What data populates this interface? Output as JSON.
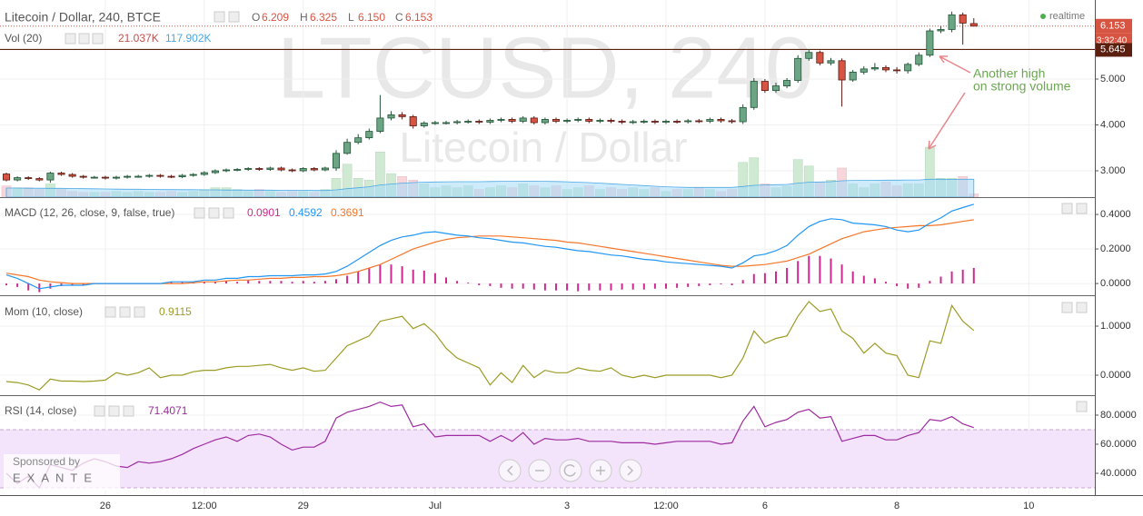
{
  "chart_data": [
    {
      "type": "candlestick",
      "title": "Litecoin / Dollar, 240, BTCE",
      "legend_ohlc": [
        {
          "name": "O",
          "value": 6.209,
          "label": "6.209"
        },
        {
          "name": "H",
          "value": 6.325,
          "label": "6.325"
        },
        {
          "name": "L",
          "value": 6.15,
          "label": "6.150"
        },
        {
          "name": "C",
          "value": 6.153,
          "label": "6.153"
        }
      ],
      "watermark": "LTCUSD, 240",
      "watermark_subtitle": "Litecoin / Dollar",
      "status": "realtime",
      "countdown": "3:32:40",
      "level": 5.645,
      "annotation": [
        "Another high",
        "on strong volume"
      ],
      "annotation_color": "#6aa84f",
      "colors": {
        "up": "#6ba583",
        "up_border": "#225437",
        "down": "#d75442",
        "down_border": "#5b1a13",
        "volume_up": "#cfe9d3",
        "volume_down": "#f6d6db",
        "last_price": "#d75442",
        "level": "#5a1f0f"
      },
      "xlim": [
        -0.58,
        99.01
      ],
      "xticks": [
        {
          "value": 9,
          "label": "26"
        },
        {
          "value": 18,
          "label": "12:00"
        },
        {
          "value": 27,
          "label": "29"
        },
        {
          "value": 39,
          "label": "Jul"
        },
        {
          "value": 51,
          "label": "3"
        },
        {
          "value": 60,
          "label": "12:00"
        },
        {
          "value": 69,
          "label": "6"
        },
        {
          "value": 81,
          "label": "8"
        },
        {
          "value": 93,
          "label": "10"
        }
      ],
      "ylim": [
        2.426,
        6.723
      ],
      "yticks": [
        {
          "value": 3,
          "label": "3.000"
        },
        {
          "value": 4,
          "label": "4.000"
        },
        {
          "value": 5,
          "label": "5.000"
        }
      ],
      "grid": true,
      "open": [
        2.93,
        2.8,
        2.85,
        2.83,
        2.8,
        2.95,
        2.92,
        2.88,
        2.86,
        2.86,
        2.84,
        2.86,
        2.88,
        2.88,
        2.9,
        2.88,
        2.87,
        2.9,
        2.92,
        2.96,
        3.0,
        3.02,
        3.03,
        3.05,
        3.03,
        3.06,
        3.02,
        3.0,
        3.05,
        3.02,
        3.06,
        3.38,
        3.62,
        3.72,
        3.86,
        4.15,
        4.22,
        4.18,
        3.98,
        4.04,
        4.05,
        4.05,
        4.07,
        4.08,
        4.06,
        4.1,
        4.12,
        4.08,
        4.15,
        4.05,
        4.12,
        4.08,
        4.1,
        4.12,
        4.08,
        4.1,
        4.08,
        4.06,
        4.07,
        4.08,
        4.06,
        4.08,
        4.07,
        4.09,
        4.08,
        4.12,
        4.09,
        4.07,
        4.38,
        4.95,
        4.75,
        4.85,
        4.97,
        5.45,
        5.58,
        5.35,
        5.4,
        4.98,
        5.15,
        5.22,
        5.25,
        5.2,
        5.18,
        5.32,
        5.52,
        6.05,
        6.08,
        6.4,
        6.209
      ],
      "high": [
        2.96,
        2.88,
        2.88,
        2.86,
        2.98,
        2.98,
        2.95,
        2.91,
        2.89,
        2.89,
        2.89,
        2.91,
        2.91,
        2.93,
        2.93,
        2.91,
        2.93,
        2.95,
        2.99,
        3.03,
        3.05,
        3.06,
        3.08,
        3.08,
        3.09,
        3.09,
        3.05,
        3.08,
        3.08,
        3.09,
        3.45,
        3.7,
        3.8,
        3.92,
        4.65,
        4.3,
        4.28,
        4.22,
        4.08,
        4.09,
        4.09,
        4.11,
        4.12,
        4.12,
        4.14,
        4.16,
        4.16,
        4.19,
        4.19,
        4.16,
        4.16,
        4.14,
        4.16,
        4.16,
        4.14,
        4.14,
        4.12,
        4.11,
        4.12,
        4.12,
        4.12,
        4.12,
        4.13,
        4.13,
        4.16,
        4.16,
        4.13,
        4.45,
        5.02,
        5.0,
        4.92,
        5.02,
        5.52,
        5.65,
        5.62,
        5.46,
        5.45,
        5.2,
        5.28,
        5.35,
        5.3,
        5.26,
        5.36,
        5.58,
        6.1,
        6.15,
        6.47,
        6.45,
        6.325
      ],
      "low": [
        2.77,
        2.77,
        2.8,
        2.77,
        2.74,
        2.89,
        2.85,
        2.83,
        2.83,
        2.81,
        2.81,
        2.83,
        2.85,
        2.85,
        2.85,
        2.84,
        2.84,
        2.87,
        2.89,
        2.93,
        2.97,
        2.99,
        3.0,
        3.0,
        3.0,
        2.99,
        2.97,
        2.97,
        2.99,
        2.99,
        3.0,
        3.35,
        3.58,
        3.68,
        3.82,
        4.1,
        4.12,
        3.92,
        3.94,
        4.0,
        4.01,
        4.01,
        4.03,
        4.02,
        4.02,
        4.06,
        4.04,
        4.04,
        4.01,
        4.01,
        4.04,
        4.04,
        4.06,
        4.04,
        4.04,
        4.04,
        4.02,
        4.02,
        4.03,
        4.02,
        4.02,
        4.03,
        4.03,
        4.04,
        4.04,
        4.05,
        4.03,
        4.02,
        4.33,
        4.7,
        4.7,
        4.8,
        4.92,
        5.4,
        5.3,
        5.3,
        4.4,
        4.94,
        5.1,
        5.18,
        5.15,
        5.12,
        5.12,
        5.28,
        5.48,
        6.0,
        6.02,
        5.75,
        6.15
      ],
      "close": [
        2.8,
        2.85,
        2.83,
        2.8,
        2.95,
        2.92,
        2.88,
        2.86,
        2.86,
        2.84,
        2.86,
        2.88,
        2.88,
        2.9,
        2.88,
        2.87,
        2.9,
        2.92,
        2.96,
        3.0,
        3.02,
        3.03,
        3.05,
        3.03,
        3.06,
        3.02,
        3.0,
        3.05,
        3.02,
        3.06,
        3.38,
        3.62,
        3.72,
        3.86,
        4.15,
        4.22,
        4.18,
        3.98,
        4.04,
        4.05,
        4.05,
        4.07,
        4.08,
        4.06,
        4.1,
        4.12,
        4.08,
        4.15,
        4.05,
        4.12,
        4.08,
        4.1,
        4.12,
        4.08,
        4.1,
        4.08,
        4.06,
        4.07,
        4.08,
        4.06,
        4.08,
        4.07,
        4.09,
        4.08,
        4.12,
        4.09,
        4.07,
        4.38,
        4.95,
        4.75,
        4.85,
        4.97,
        5.45,
        5.58,
        5.35,
        5.4,
        4.98,
        5.15,
        5.22,
        5.25,
        5.2,
        5.18,
        5.32,
        5.52,
        6.05,
        6.08,
        6.4,
        6.22,
        6.153
      ],
      "volume": {
        "name": "Vol (20)",
        "ylim": [
          0,
          1300
        ],
        "values": [
          74,
          62,
          62,
          50,
          87,
          50,
          37,
          31,
          31,
          31,
          37,
          31,
          37,
          31,
          31,
          37,
          31,
          37,
          50,
          62,
          62,
          50,
          37,
          50,
          37,
          31,
          37,
          37,
          31,
          50,
          124,
          217,
          124,
          112,
          298,
          155,
          136,
          112,
          87,
          62,
          74,
          62,
          74,
          50,
          62,
          74,
          62,
          87,
          74,
          62,
          74,
          50,
          62,
          74,
          50,
          62,
          50,
          62,
          50,
          62,
          37,
          50,
          50,
          62,
          50,
          37,
          50,
          229,
          260,
          87,
          62,
          74,
          248,
          205,
          99,
          112,
          192,
          87,
          62,
          87,
          99,
          74,
          87,
          87,
          329,
          124,
          124,
          136,
          21.037
        ],
        "last_label": "21.037K",
        "last_color": "#c0504d",
        "ma": [
          60,
          60,
          59,
          59,
          58,
          58,
          57,
          56,
          55,
          54,
          53,
          52,
          52,
          51,
          50,
          50,
          49,
          49,
          48,
          48,
          47,
          47,
          46,
          46,
          46,
          45,
          45,
          45,
          44,
          44,
          48,
          56,
          62,
          68,
          80,
          86,
          92,
          96,
          99,
          100,
          101,
          102,
          102,
          102,
          103,
          104,
          104,
          105,
          105,
          104,
          103,
          101,
          98,
          96,
          92,
          88,
          84,
          80,
          76,
          72,
          68,
          66,
          64,
          64,
          64,
          64,
          64,
          70,
          78,
          80,
          82,
          84,
          92,
          98,
          100,
          102,
          108,
          110,
          110,
          111,
          112,
          112,
          113,
          113,
          118,
          118,
          117,
          118,
          117.902
        ],
        "ma_last_label": "117.902K",
        "ma_color": "#4aa8e6",
        "ma_fill": "#a6dbf8"
      }
    },
    {
      "type": "macd",
      "name": "MACD (12, 26, close, 9, false, true)",
      "ylim": [
        -0.068,
        0.495
      ],
      "yticks": [
        {
          "value": 0,
          "label": "0.0000"
        },
        {
          "value": 0.2,
          "label": "0.2000"
        },
        {
          "value": 0.4,
          "label": "0.4000"
        }
      ],
      "series": [
        {
          "color": "#cc2a8e",
          "values": [
            -0.01,
            -0.02,
            -0.04,
            -0.05,
            -0.03,
            -0.015,
            -0.01,
            -0.01,
            0.0,
            0.0,
            0.0,
            0.0,
            0.0,
            0.0,
            0.0,
            0.01,
            0.01,
            0.005,
            0.01,
            0.01,
            0.015,
            0.01,
            0.02,
            0.015,
            0.015,
            0.015,
            0.01,
            0.015,
            0.01,
            0.015,
            0.025,
            0.045,
            0.07,
            0.09,
            0.11,
            0.11,
            0.1,
            0.08,
            0.075,
            0.06,
            0.035,
            0.015,
            0.005,
            -0.01,
            -0.015,
            -0.025,
            -0.03,
            -0.03,
            -0.035,
            -0.04,
            -0.04,
            -0.04,
            -0.045,
            -0.04,
            -0.04,
            -0.04,
            -0.035,
            -0.035,
            -0.035,
            -0.03,
            -0.03,
            -0.025,
            -0.02,
            -0.015,
            -0.01,
            -0.005,
            -0.01,
            0.02,
            0.055,
            0.06,
            0.07,
            0.09,
            0.13,
            0.16,
            0.16,
            0.145,
            0.11,
            0.07,
            0.045,
            0.03,
            0.01,
            -0.015,
            -0.03,
            -0.025,
            0.015,
            0.04,
            0.07,
            0.08,
            0.0901
          ]
        },
        {
          "color": "#2196f3",
          "values": [
            0.05,
            0.03,
            0.0,
            -0.03,
            -0.02,
            -0.01,
            -0.01,
            -0.01,
            0.0,
            0.0,
            0.0,
            0.0,
            0.0,
            0.0,
            0.0,
            0.01,
            0.01,
            0.01,
            0.02,
            0.02,
            0.03,
            0.03,
            0.04,
            0.04,
            0.045,
            0.045,
            0.045,
            0.05,
            0.05,
            0.055,
            0.07,
            0.1,
            0.14,
            0.18,
            0.22,
            0.25,
            0.27,
            0.28,
            0.295,
            0.3,
            0.29,
            0.28,
            0.275,
            0.265,
            0.26,
            0.25,
            0.24,
            0.235,
            0.225,
            0.215,
            0.21,
            0.2,
            0.19,
            0.185,
            0.175,
            0.165,
            0.16,
            0.15,
            0.14,
            0.135,
            0.125,
            0.12,
            0.115,
            0.11,
            0.105,
            0.1,
            0.09,
            0.12,
            0.16,
            0.17,
            0.19,
            0.22,
            0.28,
            0.33,
            0.36,
            0.375,
            0.37,
            0.35,
            0.345,
            0.34,
            0.33,
            0.31,
            0.3,
            0.31,
            0.35,
            0.38,
            0.42,
            0.44,
            0.4592
          ]
        },
        {
          "color": "#f5772a",
          "values": [
            0.06,
            0.05,
            0.04,
            0.02,
            0.01,
            0.005,
            0.0,
            0.0,
            0.0,
            0.0,
            0.0,
            0.0,
            0.0,
            0.0,
            0.0,
            0.0,
            0.0,
            0.005,
            0.01,
            0.01,
            0.015,
            0.02,
            0.02,
            0.025,
            0.03,
            0.03,
            0.035,
            0.035,
            0.04,
            0.04,
            0.045,
            0.055,
            0.07,
            0.09,
            0.11,
            0.14,
            0.17,
            0.2,
            0.22,
            0.24,
            0.255,
            0.265,
            0.27,
            0.275,
            0.275,
            0.275,
            0.27,
            0.265,
            0.26,
            0.255,
            0.25,
            0.24,
            0.235,
            0.225,
            0.215,
            0.205,
            0.195,
            0.185,
            0.175,
            0.165,
            0.155,
            0.145,
            0.135,
            0.125,
            0.115,
            0.105,
            0.1,
            0.1,
            0.105,
            0.11,
            0.12,
            0.13,
            0.15,
            0.17,
            0.2,
            0.23,
            0.26,
            0.28,
            0.3,
            0.31,
            0.32,
            0.325,
            0.33,
            0.335,
            0.335,
            0.34,
            0.35,
            0.36,
            0.3691
          ]
        }
      ]
    },
    {
      "type": "line",
      "name": "Mom (10, close)",
      "color": "#9c9c26",
      "ylim": [
        -0.407,
        1.611
      ],
      "yticks": [
        {
          "value": 0,
          "label": "0.0000"
        },
        {
          "value": 1,
          "label": "1.0000"
        }
      ],
      "values": [
        -0.13,
        -0.15,
        -0.2,
        -0.3,
        -0.08,
        -0.12,
        -0.12,
        -0.13,
        -0.12,
        -0.1,
        0.05,
        0.0,
        0.05,
        0.15,
        -0.05,
        0.0,
        0.0,
        0.07,
        0.1,
        0.1,
        0.15,
        0.18,
        0.18,
        0.2,
        0.22,
        0.15,
        0.1,
        0.15,
        0.08,
        0.1,
        0.35,
        0.6,
        0.7,
        0.8,
        1.1,
        1.15,
        1.2,
        0.95,
        1.05,
        0.85,
        0.55,
        0.35,
        0.25,
        0.15,
        -0.2,
        0.05,
        -0.15,
        0.2,
        -0.05,
        0.1,
        0.05,
        0.05,
        0.15,
        0.1,
        0.08,
        0.15,
        0.0,
        -0.05,
        0.0,
        -0.05,
        0.0,
        0.0,
        0.0,
        0.0,
        0.0,
        -0.05,
        0.0,
        0.35,
        0.9,
        0.65,
        0.75,
        0.8,
        1.2,
        1.5,
        1.3,
        1.35,
        0.9,
        0.75,
        0.45,
        0.65,
        0.45,
        0.4,
        0.0,
        -0.05,
        0.7,
        0.65,
        1.42,
        1.1,
        0.9115
      ]
    },
    {
      "type": "line",
      "name": "RSI (14, close)",
      "color": "#9e2ba0",
      "ylim": [
        25,
        93.1
      ],
      "yticks": [
        {
          "value": 40,
          "label": "40.0000"
        },
        {
          "value": 60,
          "label": "60.0000"
        },
        {
          "value": 80,
          "label": "80.0000"
        }
      ],
      "band": [
        30,
        70
      ],
      "band_color": "#f3e3fb",
      "values": [
        40,
        33,
        38,
        30,
        46,
        44,
        42,
        47,
        50,
        48,
        45,
        44,
        48,
        47,
        48,
        50,
        53,
        57,
        60,
        63,
        65,
        62,
        66,
        67,
        65,
        60,
        56,
        58,
        58,
        62,
        78,
        82,
        84,
        86,
        89,
        86,
        87,
        72,
        74,
        65,
        66,
        66,
        66,
        66,
        62,
        66,
        62,
        68,
        60,
        64,
        63,
        63,
        64,
        62,
        62,
        62,
        61,
        61,
        61,
        60,
        61,
        62,
        62,
        62,
        62,
        60,
        61,
        76,
        86,
        72,
        75,
        77,
        82,
        84,
        78,
        79,
        62,
        64,
        66,
        66,
        63,
        63,
        66,
        68,
        77,
        76,
        79,
        74,
        71.4071
      ]
    }
  ],
  "sponsor": {
    "label": "Sponsored by",
    "name": "EXANTE"
  }
}
